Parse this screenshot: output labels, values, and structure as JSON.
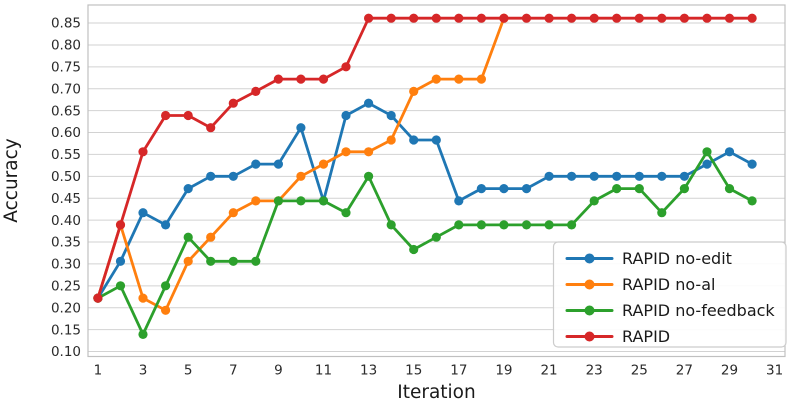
{
  "chart_data": {
    "type": "line",
    "title": "",
    "xlabel": "Iteration",
    "ylabel": "Accuracy",
    "x_ticks": [
      1,
      3,
      5,
      7,
      9,
      11,
      13,
      15,
      17,
      19,
      21,
      23,
      25,
      27,
      29,
      31
    ],
    "y_ticks": [
      "0.10",
      "0.15",
      "0.20",
      "0.25",
      "0.30",
      "0.35",
      "0.40",
      "0.45",
      "0.50",
      "0.55",
      "0.60",
      "0.65",
      "0.70",
      "0.75",
      "0.80",
      "0.85"
    ],
    "xlim": [
      0.56,
      31.46
    ],
    "ylim": [
      0.0886,
      0.8912
    ],
    "grid": "horizontal-only",
    "legend_position": "lower-right",
    "styles": {
      "grid_color": "#d2d2d2",
      "border_color": "#c0c0c0",
      "tick_text_color": "#2b2b2b",
      "axis_label_color": "#1a1a1a",
      "legend_border_color": "#cccccc",
      "legend_text_color": "#1a1a1a",
      "background": "#ffffff"
    },
    "series": [
      {
        "name": "RAPID no-edit",
        "color": "#1f77b4",
        "x": [
          1,
          2,
          3,
          4,
          5,
          6,
          7,
          8,
          9,
          10,
          11,
          12,
          13,
          14,
          15,
          16,
          17,
          18,
          19,
          20,
          21,
          22,
          23,
          24,
          25,
          26,
          27,
          28,
          29,
          30
        ],
        "values": [
          0.222,
          0.306,
          0.417,
          0.389,
          0.472,
          0.5,
          0.5,
          0.528,
          0.528,
          0.611,
          0.444,
          0.639,
          0.667,
          0.639,
          0.583,
          0.583,
          0.444,
          0.472,
          0.472,
          0.472,
          0.5,
          0.5,
          0.5,
          0.5,
          0.5,
          0.5,
          0.5,
          0.528,
          0.556,
          0.528
        ]
      },
      {
        "name": "RAPID no-al",
        "color": "#ff7f0e",
        "x": [
          1,
          2,
          3,
          4,
          5,
          6,
          7,
          8,
          9,
          10,
          11,
          12,
          13,
          14,
          15,
          16,
          17,
          18,
          19
        ],
        "values": [
          0.222,
          0.389,
          0.222,
          0.194,
          0.306,
          0.361,
          0.417,
          0.444,
          0.444,
          0.5,
          0.528,
          0.556,
          0.556,
          0.583,
          0.694,
          0.722,
          0.722,
          0.722,
          0.861
        ]
      },
      {
        "name": "RAPID no-feedback",
        "color": "#2ca02c",
        "x": [
          1,
          2,
          3,
          4,
          5,
          6,
          7,
          8,
          9,
          10,
          11,
          12,
          13,
          14,
          15,
          16,
          17,
          18,
          19,
          20,
          21,
          22,
          23,
          24,
          25,
          26,
          27,
          28,
          29,
          30
        ],
        "values": [
          0.222,
          0.25,
          0.139,
          0.25,
          0.361,
          0.306,
          0.306,
          0.306,
          0.444,
          0.444,
          0.444,
          0.417,
          0.5,
          0.389,
          0.333,
          0.361,
          0.389,
          0.389,
          0.389,
          0.389,
          0.389,
          0.389,
          0.444,
          0.472,
          0.472,
          0.417,
          0.472,
          0.556,
          0.472,
          0.444
        ]
      },
      {
        "name": "RAPID",
        "color": "#d62728",
        "x": [
          1,
          2,
          3,
          4,
          5,
          6,
          7,
          8,
          9,
          10,
          11,
          12,
          13,
          14,
          15,
          16,
          17,
          18,
          19,
          20,
          21,
          22,
          23,
          24,
          25,
          26,
          27,
          28,
          29,
          30
        ],
        "values": [
          0.222,
          0.389,
          0.556,
          0.639,
          0.639,
          0.611,
          0.667,
          0.694,
          0.722,
          0.722,
          0.722,
          0.75,
          0.861,
          0.861,
          0.861,
          0.861,
          0.861,
          0.861,
          0.861,
          0.861,
          0.861,
          0.861,
          0.861,
          0.861,
          0.861,
          0.861,
          0.861,
          0.861,
          0.861,
          0.861
        ]
      }
    ]
  }
}
